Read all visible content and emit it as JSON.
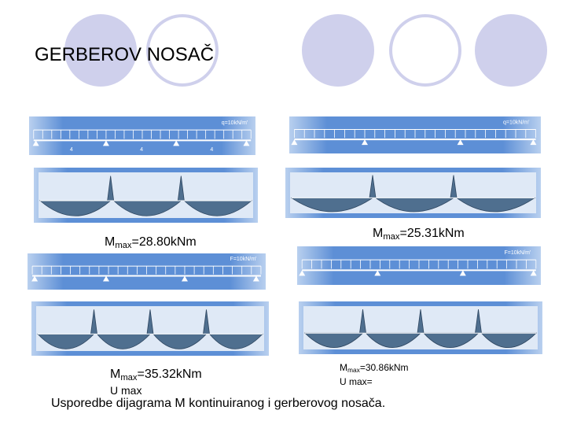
{
  "header": {
    "title": "GERBEROV NOSAČ"
  },
  "panels": [
    {
      "load_label": "q=10kN/m'",
      "span_labels": [
        "4",
        "4",
        "4"
      ],
      "moment": {
        "symbol": "M",
        "subscript": "max",
        "value": "=28.80kNm"
      }
    },
    {
      "load_label": "q=10kN/m'",
      "moment": {
        "symbol": "M",
        "subscript": "max",
        "value": "=25.31kNm"
      }
    },
    {
      "load_label": "F=10kN/m'",
      "moment": {
        "symbol": "M",
        "subscript": "max",
        "value": "=35.32kNm"
      },
      "note": "U max"
    },
    {
      "load_label": "F=10kN/m'",
      "moment": {
        "symbol": "M",
        "subscript": "max",
        "value": "=30.86kNm"
      },
      "note": "U max="
    }
  ],
  "caption": "Usporedbe dijagrama M kontinuiranog i gerberovog nosača."
}
